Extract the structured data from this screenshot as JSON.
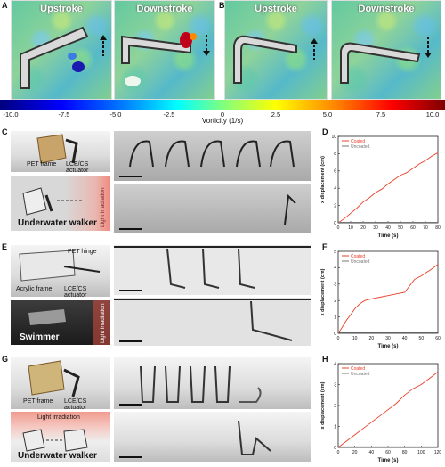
{
  "panels": {
    "A": "A",
    "B": "B",
    "C": "C",
    "D": "D",
    "E": "E",
    "F": "F",
    "G": "G",
    "H": "H"
  },
  "vorticity": {
    "upstroke": "Upstroke",
    "downstroke": "Downstroke",
    "ticks": [
      "-10.0",
      "-7.5",
      "-5.0",
      "-2.5",
      "0",
      "2.5",
      "5.0",
      "7.5",
      "10.0"
    ],
    "label": "Vorticity (1/s)"
  },
  "rowC": {
    "pet_frame": "PET frame",
    "actuator": "LCE/CS actuator",
    "caption": "Underwater walker",
    "light": "Light irradiation"
  },
  "rowE": {
    "pet_hinge": "PET hinge",
    "acrylic_frame": "Acrylic frame",
    "actuator": "LCE/CS actuator",
    "caption": "Swimmer",
    "light": "Light irradiation"
  },
  "rowG": {
    "pet_frame": "PET frame",
    "actuator": "LCE/CS actuator",
    "light": "Light irradiation",
    "caption": "Underwater walker"
  },
  "colors": {
    "coated": "#e8402a",
    "uncoated": "#777777"
  },
  "chart_data": [
    {
      "type": "line",
      "xlabel": "Time (s)",
      "ylabel": "x displacement (cm)",
      "xlim": [
        0,
        80
      ],
      "ylim": [
        0,
        10
      ],
      "xticks": [
        "0",
        "10",
        "20",
        "30",
        "40",
        "50",
        "60",
        "70",
        "80"
      ],
      "yticks": [
        "0",
        "2",
        "4",
        "6",
        "8",
        "10"
      ],
      "legend_position": "top-left",
      "series": [
        {
          "name": "Coated",
          "x": [
            0,
            5,
            10,
            15,
            20,
            25,
            30,
            35,
            40,
            45,
            50,
            55,
            60,
            65,
            70,
            75,
            80
          ],
          "y": [
            0,
            0.5,
            1.1,
            1.7,
            2.4,
            2.9,
            3.5,
            3.9,
            4.5,
            5.0,
            5.5,
            5.8,
            6.3,
            6.8,
            7.2,
            7.7,
            8.1
          ]
        },
        {
          "name": "Uncoated",
          "x": [
            0,
            80
          ],
          "y": [
            0.05,
            0.05
          ]
        }
      ]
    },
    {
      "type": "line",
      "xlabel": "Time (s)",
      "ylabel": "x displacement (cm)",
      "xlim": [
        0,
        60
      ],
      "ylim": [
        0,
        5
      ],
      "xticks": [
        "0",
        "10",
        "20",
        "30",
        "40",
        "50",
        "60"
      ],
      "yticks": [
        "0",
        "1",
        "2",
        "3",
        "4",
        "5"
      ],
      "legend_position": "top-left",
      "series": [
        {
          "name": "Coated",
          "x": [
            0,
            2,
            5,
            8,
            10,
            13,
            16,
            20,
            25,
            30,
            35,
            40,
            43,
            46,
            50,
            53,
            56,
            60
          ],
          "y": [
            0,
            0.3,
            0.8,
            1.2,
            1.5,
            1.8,
            2.0,
            2.1,
            2.2,
            2.3,
            2.4,
            2.5,
            2.9,
            3.3,
            3.5,
            3.7,
            3.9,
            4.2
          ]
        },
        {
          "name": "Uncoated",
          "x": [
            0,
            60
          ],
          "y": [
            0.05,
            0.05
          ]
        }
      ]
    },
    {
      "type": "line",
      "xlabel": "Time (s)",
      "ylabel": "x displacement (cm)",
      "xlim": [
        0,
        120
      ],
      "ylim": [
        0,
        4
      ],
      "xticks": [
        "0",
        "20",
        "40",
        "60",
        "80",
        "100",
        "120"
      ],
      "yticks": [
        "0",
        "1",
        "2",
        "3",
        "4"
      ],
      "legend_position": "top-left",
      "series": [
        {
          "name": "Coated",
          "x": [
            0,
            10,
            20,
            30,
            40,
            50,
            60,
            70,
            80,
            90,
            100,
            110,
            120
          ],
          "y": [
            0,
            0.3,
            0.6,
            0.9,
            1.2,
            1.5,
            1.8,
            2.1,
            2.5,
            2.8,
            3.0,
            3.3,
            3.6
          ]
        },
        {
          "name": "Uncoated",
          "x": [
            0,
            120
          ],
          "y": [
            0.03,
            0.03
          ]
        }
      ]
    }
  ]
}
